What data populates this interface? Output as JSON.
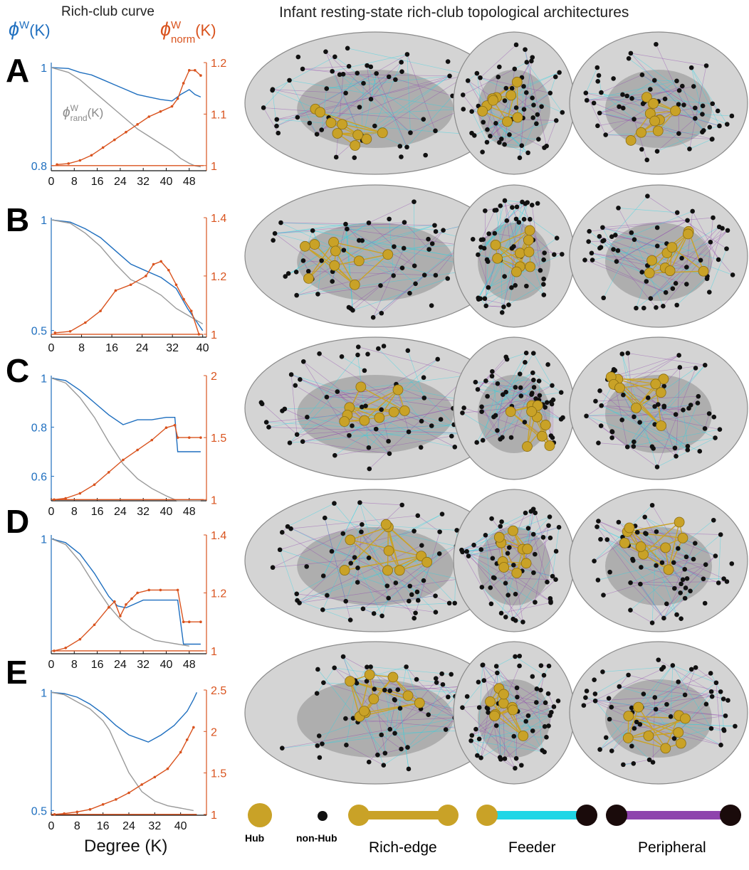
{
  "figure": {
    "left_header": "Rich-club curve",
    "right_header": "Infant resting-state rich-club topological architectures",
    "left_axis_label": {
      "symbol": "ϕ",
      "sup": "W",
      "suffix": "(K)",
      "color": "#1f6fbf"
    },
    "right_axis_label": {
      "symbol": "ϕ",
      "sup": "W",
      "sub": "norm",
      "suffix": "(K)",
      "color": "#d9531e"
    },
    "inline_label": {
      "symbol": "ϕ",
      "sup": "W",
      "sub": "rand",
      "suffix": "(K)"
    },
    "x_axis_label": "Degree (K)",
    "colors": {
      "weighted": "#1f6fbf",
      "normalized": "#d9531e",
      "random": "#9a9a9a",
      "hub": "#c9a227",
      "nonhub": "#111111",
      "rich_edge": "#c9a227",
      "feeder": "#1fd6e6",
      "peripheral": "#8e44ad"
    }
  },
  "legend": {
    "hub": "Hub",
    "nonhub": "non-Hub",
    "rich_edge": "Rich-edge",
    "feeder": "Feeder",
    "peripheral": "Peripheral"
  },
  "chart_data": [
    {
      "type": "line",
      "panel": "A",
      "xticks": [
        0,
        8,
        16,
        24,
        32,
        40,
        48
      ],
      "xlim": [
        0,
        54
      ],
      "left_axis": {
        "ylim": [
          0.79,
          1.01
        ],
        "ticks": [
          0.8,
          1
        ],
        "tick_labels": [
          "0.8",
          "1"
        ]
      },
      "right_axis": {
        "ylim": [
          0.99,
          1.2
        ],
        "ticks": [
          1,
          1.1,
          1.2
        ],
        "tick_labels": [
          "1",
          "1.1",
          "1.2"
        ]
      },
      "series": [
        {
          "axis": "left",
          "color": "#1f6fbf",
          "x": [
            0,
            6,
            10,
            14,
            18,
            22,
            26,
            30,
            34,
            38,
            42,
            45,
            48,
            50,
            52
          ],
          "y": [
            1.0,
            0.998,
            0.99,
            0.985,
            0.975,
            0.965,
            0.955,
            0.945,
            0.94,
            0.935,
            0.932,
            0.945,
            0.955,
            0.945,
            0.94
          ]
        },
        {
          "axis": "left",
          "color": "#9a9a9a",
          "x": [
            0,
            6,
            10,
            14,
            18,
            22,
            26,
            30,
            34,
            38,
            42,
            45,
            48,
            50,
            52
          ],
          "y": [
            1.0,
            0.99,
            0.975,
            0.955,
            0.935,
            0.915,
            0.895,
            0.875,
            0.86,
            0.845,
            0.83,
            0.815,
            0.805,
            0.8,
            0.798
          ]
        },
        {
          "axis": "right",
          "color": "#d9531e",
          "markers": true,
          "x": [
            2,
            6,
            10,
            14,
            18,
            22,
            26,
            30,
            34,
            38,
            42,
            44,
            46,
            48,
            50,
            52
          ],
          "y": [
            1.002,
            1.004,
            1.01,
            1.02,
            1.035,
            1.05,
            1.065,
            1.08,
            1.095,
            1.105,
            1.115,
            1.13,
            1.16,
            1.185,
            1.185,
            1.175
          ]
        },
        {
          "axis": "right",
          "color": "#d9531e",
          "x": [
            0,
            53
          ],
          "y": [
            1.0,
            1.0
          ]
        }
      ]
    },
    {
      "type": "line",
      "panel": "B",
      "xticks": [
        0,
        8,
        16,
        24,
        32,
        40
      ],
      "xlim": [
        0,
        41
      ],
      "left_axis": {
        "ylim": [
          0.47,
          1.01
        ],
        "ticks": [
          0.5,
          1
        ],
        "tick_labels": [
          "0.5",
          "1"
        ]
      },
      "right_axis": {
        "ylim": [
          0.99,
          1.4
        ],
        "ticks": [
          1,
          1.2,
          1.4
        ],
        "tick_labels": [
          "1",
          "1.2",
          "1.4"
        ]
      },
      "series": [
        {
          "axis": "left",
          "color": "#1f6fbf",
          "x": [
            0,
            5,
            9,
            13,
            17,
            21,
            25,
            29,
            33,
            36,
            38,
            40
          ],
          "y": [
            1.0,
            0.99,
            0.96,
            0.92,
            0.86,
            0.8,
            0.77,
            0.74,
            0.69,
            0.6,
            0.55,
            0.5
          ]
        },
        {
          "axis": "left",
          "color": "#9a9a9a",
          "x": [
            0,
            5,
            9,
            13,
            17,
            21,
            25,
            29,
            33,
            36,
            38,
            40
          ],
          "y": [
            1.0,
            0.985,
            0.94,
            0.88,
            0.8,
            0.73,
            0.7,
            0.66,
            0.6,
            0.57,
            0.55,
            0.53
          ]
        },
        {
          "axis": "right",
          "color": "#d9531e",
          "markers": true,
          "x": [
            1,
            5,
            9,
            13,
            17,
            21,
            25,
            27,
            29,
            31,
            33,
            35,
            37,
            39
          ],
          "y": [
            1.005,
            1.01,
            1.04,
            1.08,
            1.15,
            1.17,
            1.2,
            1.24,
            1.25,
            1.22,
            1.17,
            1.12,
            1.08,
            1.0
          ]
        },
        {
          "axis": "right",
          "color": "#d9531e",
          "x": [
            0,
            40
          ],
          "y": [
            1.0,
            1.0
          ]
        }
      ]
    },
    {
      "type": "line",
      "panel": "C",
      "xticks": [
        0,
        8,
        16,
        24,
        32,
        40,
        48
      ],
      "xlim": [
        0,
        54
      ],
      "left_axis": {
        "ylim": [
          0.5,
          1.01
        ],
        "ticks": [
          0.6,
          0.8,
          1
        ],
        "tick_labels": [
          "0.6",
          "0.8",
          "1"
        ]
      },
      "right_axis": {
        "ylim": [
          0.99,
          2.0
        ],
        "ticks": [
          1,
          1.5,
          2
        ],
        "tick_labels": [
          "1",
          "1.5",
          "2"
        ]
      },
      "series": [
        {
          "axis": "left",
          "color": "#1f6fbf",
          "x": [
            0,
            5,
            10,
            15,
            20,
            25,
            30,
            35,
            40,
            43,
            44,
            48,
            52
          ],
          "y": [
            1.0,
            0.99,
            0.95,
            0.9,
            0.85,
            0.81,
            0.83,
            0.83,
            0.84,
            0.84,
            0.7,
            0.7,
            0.7
          ]
        },
        {
          "axis": "left",
          "color": "#9a9a9a",
          "x": [
            0,
            5,
            10,
            15,
            20,
            25,
            30,
            35,
            40,
            44,
            48,
            52
          ],
          "y": [
            1.0,
            0.98,
            0.92,
            0.84,
            0.74,
            0.65,
            0.59,
            0.55,
            0.52,
            0.5,
            0.5,
            0.5
          ]
        },
        {
          "axis": "right",
          "color": "#d9531e",
          "markers": true,
          "x": [
            1,
            5,
            10,
            15,
            20,
            25,
            30,
            35,
            40,
            43,
            44,
            48,
            52
          ],
          "y": [
            1.0,
            1.01,
            1.05,
            1.12,
            1.22,
            1.32,
            1.4,
            1.48,
            1.58,
            1.6,
            1.5,
            1.5,
            1.5
          ]
        },
        {
          "axis": "right",
          "color": "#d9531e",
          "x": [
            0,
            53
          ],
          "y": [
            1.0,
            1.0
          ]
        }
      ]
    },
    {
      "type": "line",
      "panel": "D",
      "xticks": [
        0,
        8,
        16,
        24,
        32,
        40,
        48
      ],
      "xlim": [
        0,
        54
      ],
      "left_axis": {
        "ylim": [
          0.4,
          1.02
        ],
        "ticks": [
          1
        ],
        "tick_labels": [
          "1"
        ]
      },
      "right_axis": {
        "ylim": [
          0.99,
          1.4
        ],
        "ticks": [
          1,
          1.2,
          1.4
        ],
        "tick_labels": [
          "1",
          "1.2",
          "1.4"
        ]
      },
      "series": [
        {
          "axis": "left",
          "color": "#1f6fbf",
          "x": [
            0,
            5,
            10,
            15,
            20,
            23,
            26,
            29,
            32,
            36,
            40,
            44,
            46,
            48,
            52
          ],
          "y": [
            1.0,
            0.98,
            0.92,
            0.82,
            0.7,
            0.65,
            0.64,
            0.66,
            0.68,
            0.68,
            0.68,
            0.68,
            0.45,
            0.45,
            0.45
          ]
        },
        {
          "axis": "left",
          "color": "#9a9a9a",
          "x": [
            0,
            5,
            10,
            15,
            20,
            24,
            28,
            32,
            36,
            40,
            44,
            48
          ],
          "y": [
            1.0,
            0.97,
            0.88,
            0.76,
            0.65,
            0.58,
            0.53,
            0.5,
            0.47,
            0.46,
            0.45,
            0.44
          ]
        },
        {
          "axis": "right",
          "color": "#d9531e",
          "markers": true,
          "x": [
            1,
            5,
            10,
            15,
            20,
            22,
            24,
            26,
            28,
            30,
            34,
            38,
            44,
            46,
            48,
            52
          ],
          "y": [
            1.0,
            1.01,
            1.04,
            1.09,
            1.15,
            1.17,
            1.12,
            1.16,
            1.18,
            1.2,
            1.21,
            1.21,
            1.21,
            1.1,
            1.1,
            1.1
          ]
        },
        {
          "axis": "right",
          "color": "#d9531e",
          "x": [
            0,
            53
          ],
          "y": [
            1.0,
            1.0
          ]
        }
      ]
    },
    {
      "type": "line",
      "panel": "E",
      "xticks": [
        0,
        8,
        16,
        24,
        32,
        40
      ],
      "xlim": [
        0,
        48
      ],
      "left_axis": {
        "ylim": [
          0.48,
          1.01
        ],
        "ticks": [
          0.5,
          1
        ],
        "tick_labels": [
          "0.5",
          "1"
        ]
      },
      "right_axis": {
        "ylim": [
          0.99,
          2.5
        ],
        "ticks": [
          1,
          1.5,
          2,
          2.5
        ],
        "tick_labels": [
          "1",
          "1.5",
          "2",
          "2.5"
        ]
      },
      "series": [
        {
          "axis": "left",
          "color": "#1f6fbf",
          "x": [
            0,
            4,
            8,
            12,
            16,
            20,
            24,
            28,
            30,
            34,
            38,
            42,
            44,
            45
          ],
          "y": [
            1.0,
            0.995,
            0.98,
            0.95,
            0.91,
            0.86,
            0.82,
            0.8,
            0.79,
            0.82,
            0.86,
            0.92,
            0.97,
            1.0
          ]
        },
        {
          "axis": "left",
          "color": "#9a9a9a",
          "x": [
            0,
            4,
            8,
            12,
            16,
            18,
            20,
            24,
            28,
            32,
            36,
            40,
            44
          ],
          "y": [
            1.0,
            0.99,
            0.96,
            0.93,
            0.88,
            0.84,
            0.78,
            0.66,
            0.58,
            0.54,
            0.52,
            0.51,
            0.5
          ]
        },
        {
          "axis": "right",
          "color": "#d9531e",
          "markers": true,
          "x": [
            1,
            4,
            8,
            12,
            16,
            20,
            24,
            28,
            32,
            36,
            40,
            42,
            44
          ],
          "y": [
            1.0,
            1.01,
            1.03,
            1.06,
            1.12,
            1.18,
            1.26,
            1.36,
            1.45,
            1.55,
            1.75,
            1.9,
            2.05
          ]
        },
        {
          "axis": "right",
          "color": "#d9531e",
          "x": [
            0,
            45
          ],
          "y": [
            1.0,
            1.0
          ]
        }
      ]
    }
  ],
  "panels": [
    {
      "label": "A"
    },
    {
      "label": "B"
    },
    {
      "label": "C"
    },
    {
      "label": "D"
    },
    {
      "label": "E"
    }
  ]
}
